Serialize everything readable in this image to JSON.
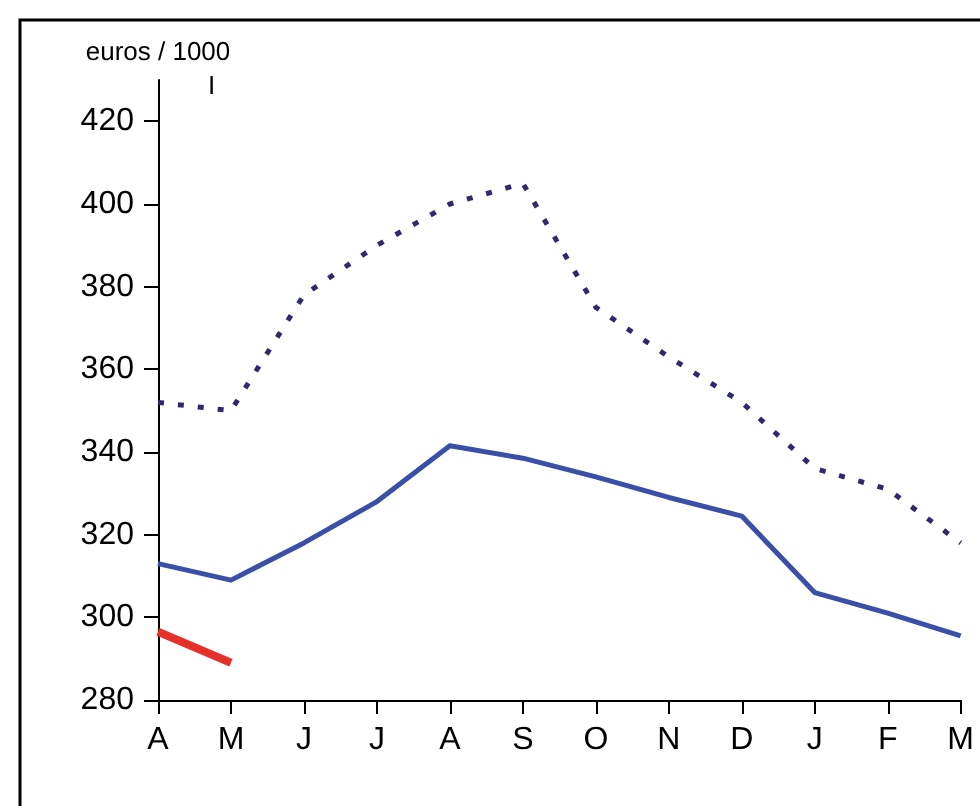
{
  "chart_data": {
    "type": "line",
    "ylabel": "euros / 1000",
    "annotations": [
      "I"
    ],
    "categories": [
      "A",
      "M",
      "J",
      "J",
      "A",
      "S",
      "O",
      "N",
      "D",
      "J",
      "F",
      "M"
    ],
    "series": [
      {
        "color": "#2e2a6e",
        "line_style": "dotted",
        "values": [
          352,
          350,
          378,
          390,
          400,
          405,
          375,
          363,
          352,
          336,
          331,
          318
        ]
      },
      {
        "color": "#3a4fa8",
        "line_style": "solid",
        "values": [
          313,
          309,
          318,
          328,
          341.5,
          338.5,
          334,
          329,
          324.5,
          306,
          301,
          295.5
        ]
      },
      {
        "color": "#e8302a",
        "line_style": "solid",
        "values": [
          296.5,
          289,
          null,
          null,
          null,
          null,
          null,
          null,
          null,
          null,
          null,
          null
        ]
      }
    ],
    "ylim": [
      280,
      430
    ],
    "yticks": [
      280,
      300,
      320,
      340,
      360,
      380,
      400,
      420
    ],
    "grid": false,
    "marker": "none"
  }
}
